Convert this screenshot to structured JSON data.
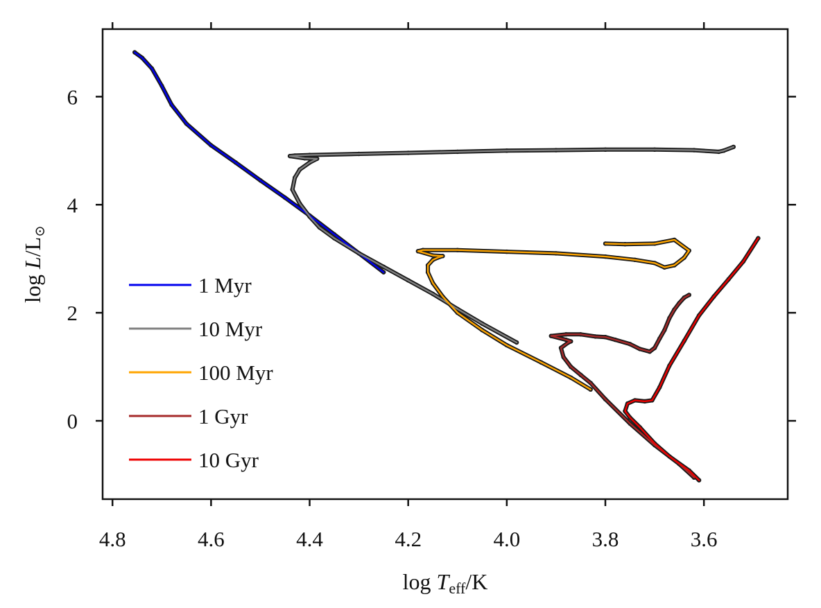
{
  "chart_data": {
    "type": "line",
    "xlabel": {
      "pre": "log ",
      "var": "T",
      "sub": "eff",
      "post": "/K"
    },
    "ylabel": {
      "pre": "log ",
      "var": "L",
      "post": "/L",
      "sub": "⊙"
    },
    "xlim": [
      4.82,
      3.43
    ],
    "ylim": [
      -1.45,
      7.25
    ],
    "x_inverted": true,
    "x_ticks": [
      4.8,
      4.6,
      4.4,
      4.2,
      4.0,
      3.8,
      3.6
    ],
    "x_tick_labels": [
      "4.8",
      "4.6",
      "4.4",
      "4.2",
      "4.0",
      "3.8",
      "3.6"
    ],
    "y_ticks": [
      0,
      2,
      4,
      6
    ],
    "y_tick_labels": [
      "0",
      "2",
      "4",
      "6"
    ],
    "legend_position": "left",
    "grid": false,
    "series": [
      {
        "name": "1 Myr",
        "color": "#0000ee",
        "x": [
          4.755,
          4.74,
          4.72,
          4.7,
          4.68,
          4.65,
          4.6,
          4.55,
          4.5,
          4.45,
          4.4,
          4.35,
          4.3,
          4.25
        ],
        "y": [
          6.82,
          6.72,
          6.52,
          6.2,
          5.85,
          5.5,
          5.1,
          4.78,
          4.45,
          4.13,
          3.8,
          3.45,
          3.1,
          2.75
        ]
      },
      {
        "name": "10 Myr",
        "color": "#808080",
        "x": [
          3.98,
          4.05,
          4.1,
          4.15,
          4.2,
          4.25,
          4.3,
          4.35,
          4.38,
          4.4,
          4.42,
          4.435,
          4.43,
          4.42,
          4.4,
          4.385,
          4.41,
          4.44,
          4.43,
          4.4,
          4.3,
          4.2,
          4.1,
          4.0,
          3.9,
          3.8,
          3.7,
          3.62,
          3.57,
          3.56,
          3.54
        ],
        "y": [
          1.45,
          1.8,
          2.07,
          2.35,
          2.6,
          2.85,
          3.1,
          3.38,
          3.58,
          3.78,
          4.02,
          4.28,
          4.5,
          4.65,
          4.78,
          4.85,
          4.86,
          4.9,
          4.91,
          4.92,
          4.94,
          4.96,
          4.98,
          5.0,
          5.01,
          5.02,
          5.02,
          5.01,
          4.98,
          5.0,
          5.07
        ]
      },
      {
        "name": "100 Myr",
        "color": "#ffa500",
        "x": [
          3.83,
          3.87,
          3.93,
          4.0,
          4.05,
          4.1,
          4.13,
          4.15,
          4.16,
          4.16,
          4.15,
          4.14,
          4.13,
          4.15,
          4.18,
          4.17,
          4.1,
          4.0,
          3.9,
          3.8,
          3.74,
          3.7,
          3.68,
          3.66,
          3.64,
          3.63,
          3.66,
          3.7,
          3.76,
          3.8
        ],
        "y": [
          0.58,
          0.8,
          1.08,
          1.4,
          1.68,
          2.0,
          2.3,
          2.55,
          2.75,
          2.88,
          2.98,
          3.02,
          3.05,
          3.06,
          3.14,
          3.16,
          3.16,
          3.13,
          3.1,
          3.04,
          2.98,
          2.92,
          2.84,
          2.88,
          3.02,
          3.15,
          3.35,
          3.28,
          3.27,
          3.28
        ]
      },
      {
        "name": "1 Gyr",
        "color": "#a52a2a",
        "x": [
          3.62,
          3.65,
          3.7,
          3.75,
          3.8,
          3.83,
          3.85,
          3.87,
          3.885,
          3.89,
          3.875,
          3.87,
          3.88,
          3.91,
          3.88,
          3.85,
          3.82,
          3.8,
          3.78,
          3.75,
          3.73,
          3.71,
          3.7,
          3.69,
          3.68,
          3.67,
          3.66,
          3.65,
          3.64,
          3.63
        ],
        "y": [
          -1.05,
          -0.8,
          -0.45,
          -0.05,
          0.4,
          0.7,
          0.85,
          1.0,
          1.18,
          1.35,
          1.45,
          1.47,
          1.5,
          1.57,
          1.6,
          1.6,
          1.56,
          1.55,
          1.5,
          1.42,
          1.33,
          1.28,
          1.35,
          1.52,
          1.68,
          1.9,
          2.06,
          2.18,
          2.28,
          2.33
        ]
      },
      {
        "name": "10 Gyr",
        "color": "#ee0000",
        "x": [
          3.61,
          3.63,
          3.67,
          3.7,
          3.73,
          3.75,
          3.76,
          3.755,
          3.74,
          3.72,
          3.705,
          3.69,
          3.67,
          3.64,
          3.61,
          3.58,
          3.55,
          3.52,
          3.49
        ],
        "y": [
          -1.1,
          -0.92,
          -0.66,
          -0.42,
          -0.12,
          0.06,
          0.18,
          0.32,
          0.38,
          0.36,
          0.38,
          0.62,
          1.02,
          1.48,
          1.95,
          2.3,
          2.62,
          2.95,
          3.38
        ]
      }
    ]
  }
}
